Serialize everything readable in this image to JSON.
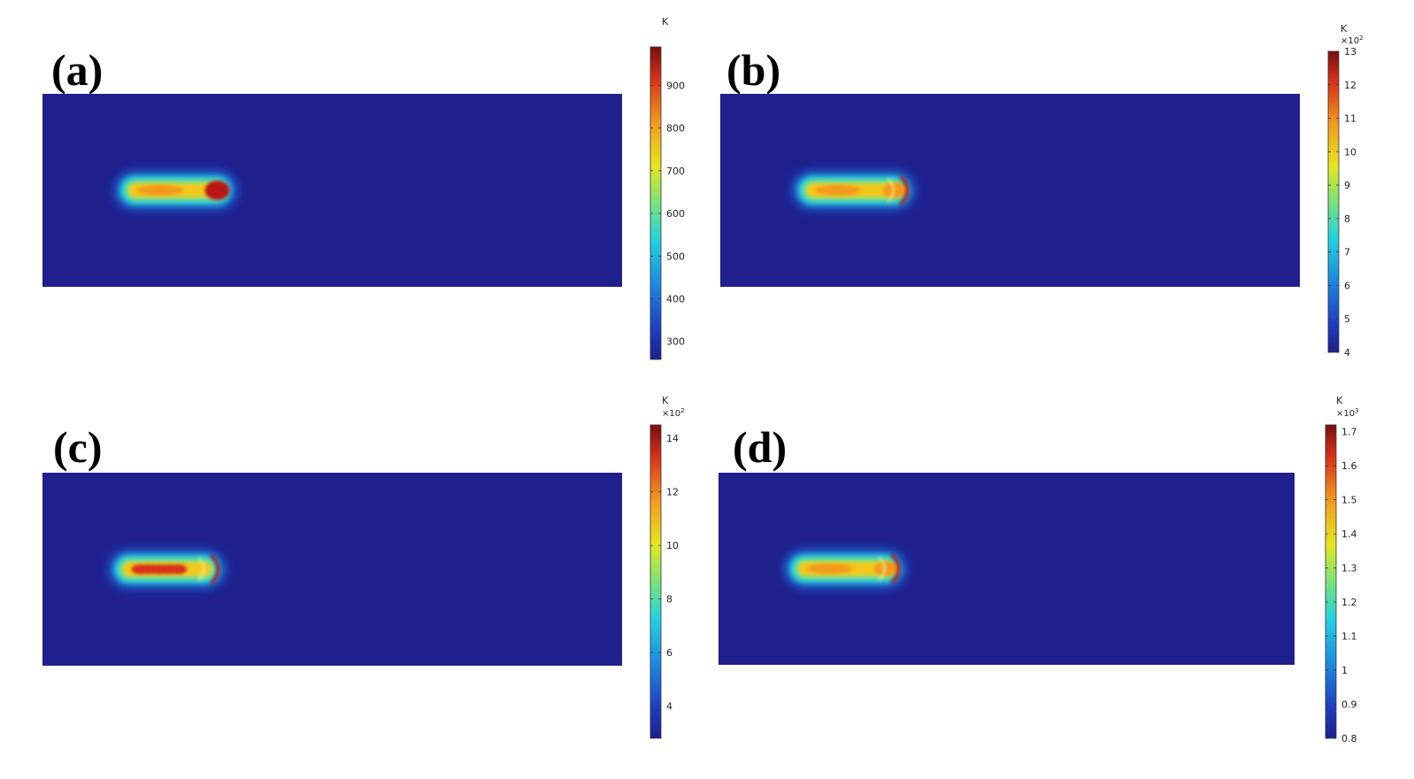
{
  "chart_data": [
    {
      "type": "heatmap",
      "panel_label": "(a)",
      "colorbar": {
        "unit": "K",
        "multiplier_base": "",
        "multiplier_exp": "",
        "range": [
          258,
          990
        ],
        "ticks": [
          300,
          400,
          500,
          600,
          700,
          800,
          900
        ],
        "tick_labels": [
          "300",
          "400",
          "500",
          "600",
          "700",
          "800",
          "900"
        ]
      },
      "domain_background": "#1f1f8e",
      "field": {
        "form": "melt-track",
        "front_ring": false,
        "peak_fraction": 1.0,
        "track_start": 0.14,
        "track_end": 0.32,
        "track_y": 0.5
      }
    },
    {
      "type": "heatmap",
      "panel_label": "(b)",
      "colorbar": {
        "unit": "K",
        "multiplier_base": "×10",
        "multiplier_exp": "2",
        "range": [
          4,
          13
        ],
        "ticks": [
          4,
          5,
          6,
          7,
          8,
          9,
          10,
          11,
          12,
          13
        ],
        "tick_labels": [
          "4",
          "5",
          "6",
          "7",
          "8",
          "9",
          "10",
          "11",
          "12",
          "13"
        ]
      },
      "domain_background": "#1f1f8e",
      "field": {
        "form": "melt-track",
        "front_ring": true,
        "peak_fraction": 0.75,
        "track_start": 0.14,
        "track_end": 0.32,
        "track_y": 0.5
      }
    },
    {
      "type": "heatmap",
      "panel_label": "(c)",
      "colorbar": {
        "unit": "K",
        "multiplier_base": "×10",
        "multiplier_exp": "2",
        "range": [
          2.8,
          14.5
        ],
        "ticks": [
          4,
          6,
          8,
          10,
          12,
          14
        ],
        "tick_labels": [
          "4",
          "6",
          "8",
          "10",
          "12",
          "14"
        ]
      },
      "domain_background": "#1f1f8e",
      "field": {
        "form": "melt-track-beads",
        "front_ring": true,
        "peak_fraction": 0.9,
        "track_start": 0.13,
        "track_end": 0.3,
        "track_y": 0.5
      }
    },
    {
      "type": "heatmap",
      "panel_label": "(d)",
      "colorbar": {
        "unit": "K",
        "multiplier_base": "×10",
        "multiplier_exp": "3",
        "range": [
          0.8,
          1.72
        ],
        "ticks": [
          0.8,
          0.9,
          1,
          1.1,
          1.2,
          1.3,
          1.4,
          1.5,
          1.6,
          1.7
        ],
        "tick_labels": [
          "0.8",
          "0.9",
          "1",
          "1.1",
          "1.2",
          "1.3",
          "1.4",
          "1.5",
          "1.6",
          "1.7"
        ]
      },
      "domain_background": "#1f1f8e",
      "field": {
        "form": "melt-track",
        "front_ring": true,
        "peak_fraction": 0.72,
        "track_start": 0.13,
        "track_end": 0.31,
        "track_y": 0.5
      }
    }
  ]
}
